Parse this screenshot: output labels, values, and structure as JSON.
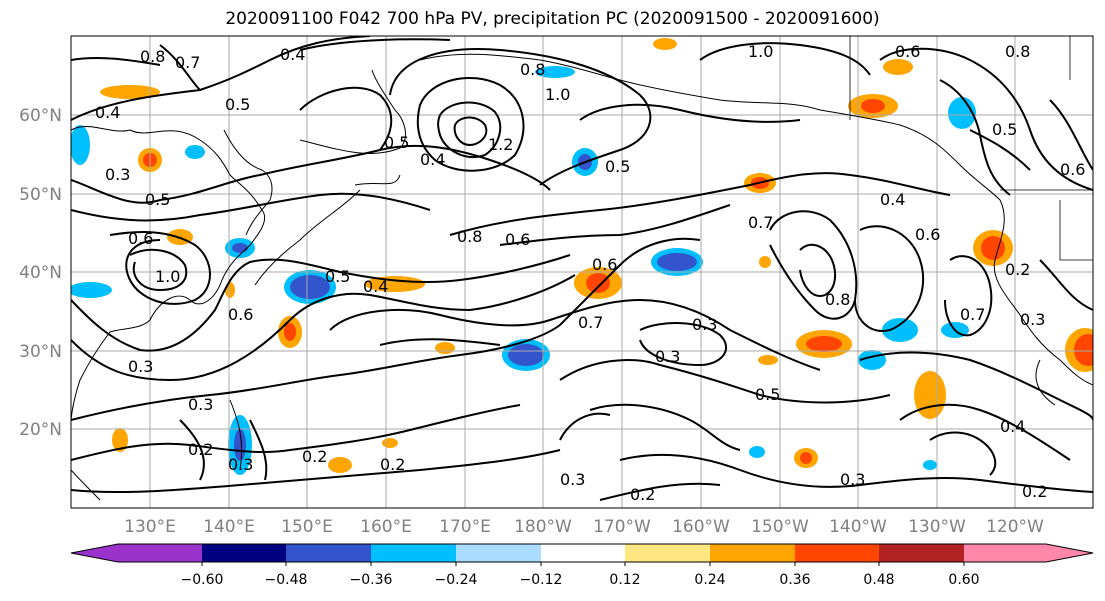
{
  "title": "2020091100 F042 700 hPa PV, precipitation PC (2020091500 - 2020091600)",
  "map": {
    "lat_labels": [
      "60°N",
      "50°N",
      "40°N",
      "30°N",
      "20°N"
    ],
    "lon_labels": [
      "130°E",
      "140°E",
      "150°E",
      "160°E",
      "170°E",
      "180°W",
      "170°W",
      "160°W",
      "150°W",
      "140°W",
      "130°W",
      "120°W"
    ],
    "contour_labels": [
      "0.4",
      "0.4",
      "0.3",
      "0.5",
      "0.6",
      "1.0",
      "0.6",
      "0.3",
      "0.2",
      "0.3",
      "0.8",
      "0.6",
      "0.5",
      "0.4",
      "0.3",
      "0.2",
      "0.2",
      "0.3",
      "1.0",
      "0.8",
      "0.5",
      "0.6",
      "0.7",
      "0.3",
      "0.3",
      "0.5",
      "0.4",
      "0.6",
      "0.7",
      "0.8",
      "0.7",
      "0.2",
      "0.5",
      "0.4",
      "0.6",
      "0.3",
      "0.2",
      "0.3",
      "0.2",
      "1.2",
      "0.4",
      "0.5",
      "0.8",
      "1.0",
      "0.5",
      "0.6",
      "0.8",
      "0.7"
    ]
  },
  "colorbar": {
    "ticks": [
      "−0.60",
      "−0.48",
      "−0.36",
      "−0.24",
      "−0.12",
      "0.12",
      "0.24",
      "0.36",
      "0.48",
      "0.60"
    ],
    "colors": [
      "#9933cc",
      "#000080",
      "#3355cc",
      "#00bfff",
      "#aadcff",
      "#ffffff",
      "#ffe680",
      "#ffa500",
      "#ff4500",
      "#b22222",
      "#ff88aa"
    ]
  }
}
